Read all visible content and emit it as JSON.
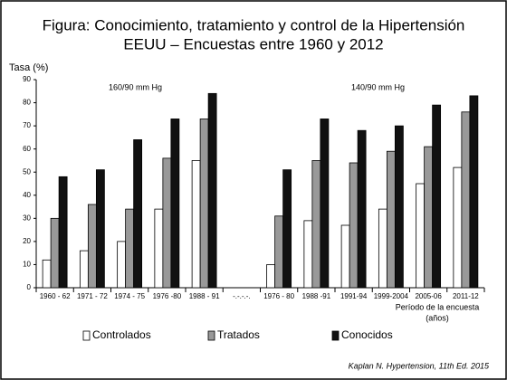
{
  "chart_data": {
    "type": "bar",
    "title": [
      "Figura: Conocimiento, tratamiento y control de la Hipertensión",
      "EEUU – Encuestas entre 1960 y 2012"
    ],
    "y_label": "Tasa (%)",
    "x_label": [
      "Período de la encuesta",
      "(años)"
    ],
    "annotations": [
      "160/90 mm Hg",
      "140/90 mm Hg"
    ],
    "source": "Kaplan N. Hypertension, 11th Ed. 2015",
    "categories": [
      "1960 - 62",
      "1971 - 72",
      "1974 - 75",
      "1976 -80",
      "1988 - 91",
      "-.-.-.-.",
      "1976 - 80",
      "1988 -91",
      "1991-94",
      "1999-2004",
      "2005-06",
      "2011-12"
    ],
    "series": [
      {
        "name": "Controlados",
        "color": "#ffffff",
        "values": [
          12,
          16,
          20,
          34,
          55,
          null,
          10,
          29,
          27,
          34,
          45,
          52
        ]
      },
      {
        "name": "Tratados",
        "color": "#999999",
        "values": [
          30,
          36,
          34,
          56,
          73,
          null,
          31,
          55,
          54,
          59,
          61,
          76
        ]
      },
      {
        "name": "Conocidos",
        "color": "#111111",
        "values": [
          48,
          51,
          64,
          73,
          84,
          null,
          51,
          73,
          68,
          70,
          79,
          83
        ]
      }
    ],
    "ylim": [
      0,
      90
    ],
    "yticks": [
      0,
      10,
      20,
      30,
      40,
      50,
      60,
      70,
      80,
      90
    ]
  }
}
